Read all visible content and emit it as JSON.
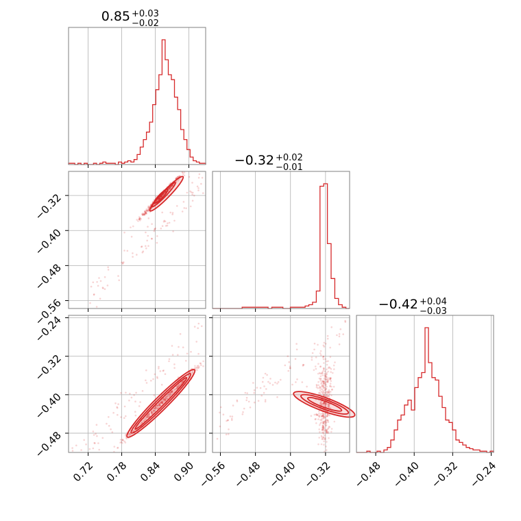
{
  "chart_data": {
    "type": "corner",
    "color": "#d62728",
    "grid": true,
    "parameters": [
      {
        "title_value": "0.85",
        "err_plus": "+0.03",
        "err_minus": "−0.02",
        "range": [
          0.685,
          0.93
        ]
      },
      {
        "title_value": "−0.32",
        "err_plus": "+0.02",
        "err_minus": "−0.01",
        "range": [
          -0.578,
          -0.265
        ]
      },
      {
        "title_value": "−0.42",
        "err_plus": "+0.04",
        "err_minus": "−0.03",
        "range": [
          -0.52,
          -0.235
        ]
      }
    ],
    "x_ticks": [
      [
        "0.72",
        "0.78",
        "0.84",
        "0.90"
      ],
      [
        "−0.56",
        "−0.48",
        "−0.40",
        "−0.32"
      ],
      [
        "−0.48",
        "−0.40",
        "−0.32",
        "−0.24"
      ]
    ],
    "y_ticks": {
      "row1": [
        "−0.32",
        "−0.40",
        "−0.48",
        "−0.56"
      ],
      "row2": [
        "−0.24",
        "−0.32",
        "−0.40",
        "−0.48"
      ]
    },
    "histograms": [
      {
        "param": 0,
        "bins": [
          0.685,
          0.93
        ],
        "counts": [
          1,
          1,
          0,
          1,
          0,
          1,
          0,
          0,
          1,
          0,
          1,
          2,
          1,
          1,
          1,
          0,
          2,
          1,
          2,
          3,
          2,
          4,
          8,
          14,
          20,
          26,
          34,
          48,
          60,
          72,
          100,
          84,
          72,
          68,
          54,
          44,
          28,
          20,
          12,
          6,
          3,
          2,
          1,
          1
        ]
      },
      {
        "param": 1,
        "bins": [
          -0.578,
          -0.265
        ],
        "counts": [
          0,
          0,
          0,
          0,
          0,
          0,
          0,
          0,
          1,
          1,
          1,
          1,
          1,
          1,
          1,
          0,
          1,
          1,
          1,
          0,
          0,
          1,
          1,
          1,
          1,
          2,
          3,
          5,
          14,
          98,
          100,
          52,
          24,
          8,
          3,
          1,
          0
        ]
      },
      {
        "param": 2,
        "bins": [
          -0.52,
          -0.235
        ],
        "counts": [
          0,
          0,
          0,
          1,
          0,
          0,
          1,
          0,
          2,
          4,
          10,
          18,
          26,
          30,
          38,
          42,
          34,
          52,
          60,
          64,
          100,
          72,
          60,
          58,
          45,
          36,
          26,
          24,
          18,
          10,
          8,
          6,
          4,
          3,
          2,
          2,
          1,
          1,
          0,
          1
        ]
      }
    ],
    "pairs": [
      {
        "x": 0,
        "y": 1,
        "trend": {
          "x0": 0.72,
          "y0": -0.56,
          "x1": 0.93,
          "y1": -0.282
        },
        "contours": [
          {
            "center": [
              0.85,
              -0.322
            ],
            "width": 0.034,
            "height": 0.006
          },
          {
            "center": [
              0.855,
              -0.318
            ],
            "width": 0.06,
            "height": 0.011
          },
          {
            "center": [
              0.86,
              -0.316
            ],
            "width": 0.085,
            "height": 0.017
          }
        ]
      },
      {
        "x": 0,
        "y": 2,
        "trend": {
          "x0": 0.68,
          "y0": -0.55,
          "x1": 0.93,
          "y1": -0.26
        },
        "contours": [
          {
            "center": [
              0.85,
              -0.418
            ],
            "width": 0.13,
            "height": 0.012
          },
          {
            "center": [
              0.85,
              -0.418
            ],
            "width": 0.15,
            "height": 0.019
          },
          {
            "center": [
              0.85,
              -0.418
            ],
            "width": 0.17,
            "height": 0.027
          }
        ]
      },
      {
        "x": 1,
        "y": 2,
        "trend": {
          "x0": -0.57,
          "y0": -0.465,
          "x1": -0.27,
          "y1": -0.26
        },
        "contours": [
          {
            "center": [
              -0.322,
              -0.42
            ],
            "width": 0.014,
            "height": 0.075
          },
          {
            "center": [
              -0.322,
              -0.42
            ],
            "width": 0.022,
            "height": 0.105
          },
          {
            "center": [
              -0.323,
              -0.42
            ],
            "width": 0.031,
            "height": 0.135
          }
        ]
      }
    ]
  }
}
